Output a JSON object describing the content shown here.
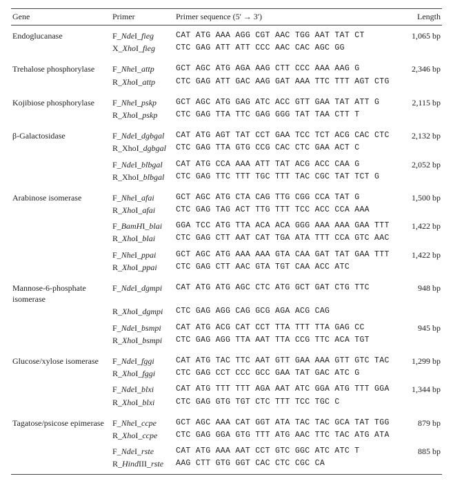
{
  "table": {
    "headers": {
      "gene": "Gene",
      "primer": "Primer",
      "sequence": "Primer sequence (5' → 3')",
      "length": "Length"
    },
    "groups": [
      {
        "gene": "Endoglucanase",
        "blocks": [
          {
            "length": "1,065 bp",
            "rows": [
              {
                "primer_html": "F_<span class=\"it\">Nde</span>I_<span class=\"it\">fieg</span>",
                "seq": "CAT ATG AAA AGG CGT AAC TGG AAT TAT CT"
              },
              {
                "primer_html": "X_<span class=\"it\">Xho</span>I_<span class=\"it\">fieg</span>",
                "seq": "CTC GAG ATT ATT CCC AAC CAC AGC GG"
              }
            ]
          }
        ]
      },
      {
        "gene": "Trehalose phosphorylase",
        "blocks": [
          {
            "length": "2,346 bp",
            "rows": [
              {
                "primer_html": "F_<span class=\"it\">Nhe</span>I_<span class=\"it\">attp</span>",
                "seq": "GCT AGC ATG AGA AAG CTT CCC AAA AAG G"
              },
              {
                "primer_html": "R_<span class=\"it\">Xho</span>I_<span class=\"it\">attp</span>",
                "seq": "CTC GAG ATT GAC AAG GAT AAA TTC TTT AGT CTG"
              }
            ]
          }
        ]
      },
      {
        "gene": "Kojibiose phosphorylase",
        "blocks": [
          {
            "length": "2,115 bp",
            "rows": [
              {
                "primer_html": "F_<span class=\"it\">Nhe</span>I_<span class=\"it\">pskp</span>",
                "seq": "GCT AGC ATG GAG ATC ACC GTT GAA TAT ATT G"
              },
              {
                "primer_html": "R_<span class=\"it\">Xho</span>I_<span class=\"it\">pskp</span>",
                "seq": "CTC GAG TTA TTC GAG GGG TAT TAA CTT T"
              }
            ]
          }
        ]
      },
      {
        "gene": "β-Galactosidase",
        "blocks": [
          {
            "length": "2,132 bp",
            "rows": [
              {
                "primer_html": "F_<span class=\"it\">Nde</span>I_<span class=\"it\">dgbgal</span>",
                "seq": "CAT ATG AGT TAT CCT GAA TCC TCT ACG CAC CTC"
              },
              {
                "primer_html": "R_XhoI_<span class=\"it\">dgbgal</span>",
                "seq": "CTC GAG TTA GTG CCG CAC CTC GAA ACT C"
              }
            ]
          },
          {
            "length": "2,052 bp",
            "rows": [
              {
                "primer_html": "F_<span class=\"it\">Nde</span>I_<span class=\"it\">blbgal</span>",
                "seq": "CAT ATG CCA AAA ATT TAT ACG ACC CAA G"
              },
              {
                "primer_html": "R_XhoI_<span class=\"it\">blbgal</span>",
                "seq": "CTC GAG TTC TTT TGC TTT TAC CGC TAT TCT G"
              }
            ]
          }
        ]
      },
      {
        "gene": "Arabinose isomerase",
        "blocks": [
          {
            "length": "1,500 bp",
            "rows": [
              {
                "primer_html": "F_<span class=\"it\">Nhe</span>I_<span class=\"it\">afai</span>",
                "seq": "GCT AGC ATG CTA CAG TTG CGG CCA TAT G"
              },
              {
                "primer_html": "R_<span class=\"it\">Xho</span>I_<span class=\"it\">afai</span>",
                "seq": "CTC GAG TAG ACT TTG TTT TCC ACC CCA AAA"
              }
            ]
          },
          {
            "length": "1,422 bp",
            "rows": [
              {
                "primer_html": "F_<span class=\"it\">BamH</span>I_<span class=\"it\">blai</span>",
                "seq": "GGA TCC ATG TTA ACA ACA GGG AAA AAA GAA TTT"
              },
              {
                "primer_html": "R_<span class=\"it\">Xho</span>I_<span class=\"it\">blai</span>",
                "seq": "CTC GAG CTT AAT CAT TGA ATA TTT CCA GTC AAC"
              }
            ]
          },
          {
            "length": "1,422 bp",
            "rows": [
              {
                "primer_html": "F_<span class=\"it\">Nhe</span>I_<span class=\"it\">ppai</span>",
                "seq": "GCT AGC ATG AAA AAA GTA CAA GAT TAT GAA TTT"
              },
              {
                "primer_html": "R_<span class=\"it\">Xho</span>I_<span class=\"it\">ppai</span>",
                "seq": "CTC GAG CTT AAC GTA TGT CAA ACC ATC"
              }
            ]
          }
        ]
      },
      {
        "gene": "Mannose-6-phosphate isomerase",
        "blocks": [
          {
            "length": "948 bp",
            "rows": [
              {
                "primer_html": "F_<span class=\"it\">Nde</span>I_<span class=\"it\">dgmpi</span>",
                "seq": "CAT ATG ATG AGC CTC ATG GCT GAT CTG TTC"
              },
              {
                "primer_html": "R_<span class=\"it\">Xho</span>I_<span class=\"it\">dgmpi</span>",
                "seq": "CTC GAG AGG CAG GCG AGA ACG CAG"
              }
            ]
          },
          {
            "length": "945 bp",
            "rows": [
              {
                "primer_html": "F_<span class=\"it\">Nde</span>I_<span class=\"it\">bsmpi</span>",
                "seq": "CAT ATG ACG CAT CCT TTA TTT TTA GAG CC"
              },
              {
                "primer_html": "R_<span class=\"it\">Xho</span>I_<span class=\"it\">bsmpi</span>",
                "seq": "CTC GAG AGG TTA AAT TTA CCG TTC ACA TGT"
              }
            ]
          }
        ]
      },
      {
        "gene": "Glucose/xylose isomerase",
        "blocks": [
          {
            "length": "1,299 bp",
            "rows": [
              {
                "primer_html": "F_<span class=\"it\">Nde</span>I_<span class=\"it\">fggi</span>",
                "seq": "CAT ATG TAC TTC AAT GTT GAA AAA GTT GTC TAC"
              },
              {
                "primer_html": "R_<span class=\"it\">Xho</span>I_<span class=\"it\">fggi</span>",
                "seq": "CTC GAG CCT CCC GCC GAA TAT GAC ATC G"
              }
            ]
          },
          {
            "length": "1,344 bp",
            "rows": [
              {
                "primer_html": "F_<span class=\"it\">Nde</span>I_<span class=\"it\">blxi</span>",
                "seq": "CAT ATG TTT TTT AGA AAT ATC GGA ATG TTT GGA"
              },
              {
                "primer_html": "R_<span class=\"it\">Xho</span>I_<span class=\"it\">blxi</span>",
                "seq": "CTC GAG GTG TGT CTC TTT TCC TGC C"
              }
            ]
          }
        ]
      },
      {
        "gene": "Tagatose/psicose epimerase",
        "blocks": [
          {
            "length": "879 bp",
            "rows": [
              {
                "primer_html": "F_<span class=\"it\">Nhe</span>I_<span class=\"it\">ccpe</span>",
                "seq": "GCT AGC AAA CAT GGT ATA TAC TAC GCA TAT TGG"
              },
              {
                "primer_html": "R_<span class=\"it\">Xho</span>I_<span class=\"it\">ccpe</span>",
                "seq": "CTC GAG GGA GTG TTT ATG AAC TTC TAC ATG ATA"
              }
            ]
          },
          {
            "length": "885 bp",
            "rows": [
              {
                "primer_html": "F_<span class=\"it\">Nde</span>I_<span class=\"it\">rste</span>",
                "seq": "CAT ATG AAA AAT CCT GTC GGC ATC ATC T"
              },
              {
                "primer_html": "R_<span class=\"it\">Hind</span>III_<span class=\"it\">rste</span>",
                "seq": "AAG CTT GTG GGT CAC CTC CGC CA"
              }
            ]
          }
        ]
      }
    ]
  }
}
